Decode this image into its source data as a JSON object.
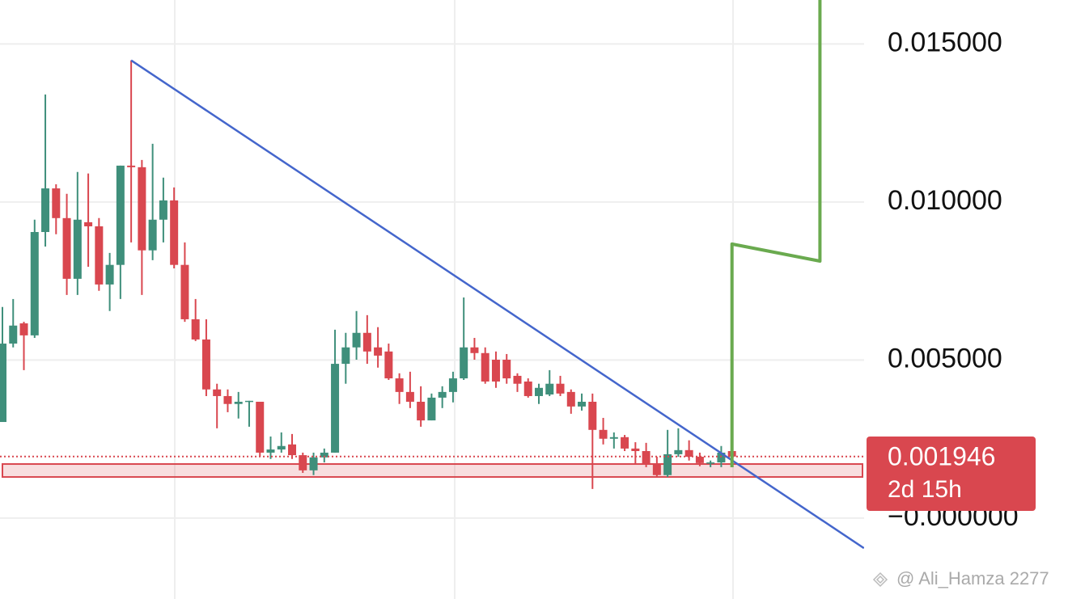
{
  "chart_data": {
    "type": "candlestick",
    "up_color": "#3f8f7b",
    "down_color": "#d9474f",
    "ylim": [
      -0.00256,
      0.01639
    ],
    "yticks": [
      {
        "value": 0.015,
        "label": "0.015000"
      },
      {
        "value": 0.01,
        "label": "0.010000"
      },
      {
        "value": 0.005,
        "label": "0.005000"
      },
      {
        "value": 0,
        "label": "−0.000000"
      }
    ],
    "grid": true,
    "open": [
      0.00304,
      0.00552,
      0.00616,
      0.00578,
      0.00905,
      0.01043,
      0.00949,
      0.00757,
      0.00936,
      0.00923,
      0.00739,
      0.00801,
      0.01115,
      0.0111,
      0.00847,
      0.00944,
      0.01005,
      0.00801,
      0.00629,
      0.00565,
      0.00407,
      0.00386,
      0.00361,
      0.00368,
      0.00368,
      0.00207,
      0.00217,
      0.00233,
      0.00199,
      0.00151,
      0.00192,
      0.00207,
      0.00488,
      0.0054,
      0.00586,
      0.0054,
      0.00527,
      0.00442,
      0.00399,
      0.00368,
      0.00309,
      0.00381,
      0.00399,
      0.00442,
      0.0054,
      0.00522,
      0.00501,
      0.00501,
      0.0045,
      0.00432,
      0.00386,
      0.00391,
      0.00425,
      0.00399,
      0.00353,
      0.00368,
      0.00279,
      0.00251,
      0.00256,
      0.0022,
      0.00212,
      0.00169,
      0.00136,
      0.00202,
      0.00215,
      0.00194,
      0.00174,
      0.00176,
      0.00212
    ],
    "high": [
      0.00668,
      0.00693,
      0.00621,
      0.00944,
      0.0134,
      0.01056,
      0.01026,
      0.01095,
      0.0109,
      0.00949,
      0.00839,
      0.01115,
      0.01448,
      0.01133,
      0.01184,
      0.01077,
      0.01046,
      0.00872,
      0.00693,
      0.00629,
      0.00425,
      0.00407,
      0.00399,
      0.00371,
      0.00368,
      0.00258,
      0.00271,
      0.00266,
      0.00207,
      0.00207,
      0.0022,
      0.00596,
      0.00586,
      0.00655,
      0.00642,
      0.00604,
      0.00552,
      0.00458,
      0.00463,
      0.00417,
      0.00394,
      0.00417,
      0.00463,
      0.00698,
      0.0057,
      0.0054,
      0.00527,
      0.00519,
      0.00458,
      0.00442,
      0.00425,
      0.00468,
      0.0045,
      0.00407,
      0.00394,
      0.00394,
      0.00317,
      0.00271,
      0.00263,
      0.0024,
      0.00238,
      0.00194,
      0.00279,
      0.00284,
      0.00246,
      0.00207,
      0.00182,
      0.00228,
      0.00225
    ],
    "low": [
      0.00304,
      0.0054,
      0.00468,
      0.0057,
      0.00859,
      0.00898,
      0.00706,
      0.00706,
      0.00795,
      0.00719,
      0.00655,
      0.00693,
      0.00872,
      0.00706,
      0.00816,
      0.00872,
      0.0079,
      0.00621,
      0.0056,
      0.00386,
      0.00284,
      0.00335,
      0.00315,
      0.00289,
      0.00194,
      0.00187,
      0.00207,
      0.00187,
      0.00143,
      0.00136,
      0.00176,
      0.00207,
      0.00425,
      0.00501,
      0.00488,
      0.00476,
      0.00437,
      0.00361,
      0.00348,
      0.00289,
      0.00309,
      0.00348,
      0.00366,
      0.00437,
      0.00501,
      0.00425,
      0.00412,
      0.00425,
      0.00399,
      0.00381,
      0.00361,
      0.00386,
      0.00386,
      0.0033,
      0.0034,
      0.00092,
      0.00233,
      0.0022,
      0.00212,
      0.00169,
      0.00161,
      0.0013,
      0.0013,
      0.00194,
      0.00182,
      0.00164,
      0.00161,
      0.00161,
      0.00182
    ],
    "close": [
      0.00552,
      0.00609,
      0.00578,
      0.00905,
      0.01043,
      0.00949,
      0.00757,
      0.00944,
      0.00923,
      0.00739,
      0.00801,
      0.01115,
      0.0111,
      0.00847,
      0.00944,
      0.01005,
      0.00801,
      0.00629,
      0.00565,
      0.00407,
      0.00386,
      0.00361,
      0.00368,
      0.00371,
      0.00207,
      0.00217,
      0.00228,
      0.00199,
      0.00151,
      0.00192,
      0.00207,
      0.00488,
      0.0054,
      0.00586,
      0.00527,
      0.00514,
      0.00442,
      0.00399,
      0.00368,
      0.00309,
      0.00381,
      0.00399,
      0.00442,
      0.0054,
      0.00522,
      0.00432,
      0.00432,
      0.00442,
      0.00425,
      0.00386,
      0.00412,
      0.00425,
      0.00394,
      0.00353,
      0.00368,
      0.00279,
      0.00251,
      0.00256,
      0.0022,
      0.00212,
      0.00169,
      0.00136,
      0.00202,
      0.00215,
      0.00194,
      0.00174,
      0.00176,
      0.00207,
      0.001946
    ],
    "countdown": "2d 15h",
    "trendline": {
      "color": "#4466cc",
      "start": [
        12,
        0.01448
      ],
      "end": [
        80.3,
        -0.00095
      ]
    },
    "projection": {
      "color": "#6aaa4f",
      "x": [
        68,
        68,
        76.2,
        76.2
      ],
      "values": [
        0.00161,
        0.00867,
        0.00813,
        0.01639
      ]
    },
    "support_zone": {
      "color": "#d9474f",
      "from": 0.0013,
      "to": 0.00171
    },
    "watermark": "@ Ali_Hamza 2277"
  }
}
